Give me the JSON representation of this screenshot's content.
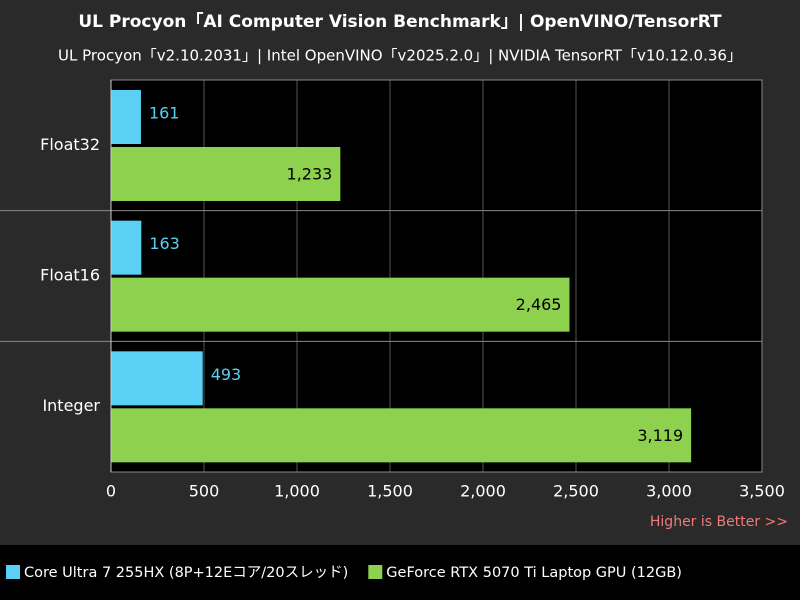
{
  "chart_data": {
    "type": "hbar",
    "title": "UL Procyon「AI Computer Vision Benchmark」| OpenVINO/TensorRT",
    "subtitle": "UL Procyon「v2.10.2031」| Intel OpenVINO「v2025.2.0」| NVIDIA TensorRT「v10.12.0.36」",
    "annotation": "Higher is Better >>",
    "categories": [
      "Float32",
      "Float16",
      "Integer"
    ],
    "series": [
      {
        "name": "Core Ultra 7 255HX (8P+12Eコア/20スレッド)",
        "color": "#5bd0f5",
        "values": [
          161,
          163,
          493
        ]
      },
      {
        "name": "GeForce RTX 5070 Ti Laptop GPU (12GB)",
        "color": "#8dd14f",
        "values": [
          1233,
          2465,
          3119
        ],
        "value_labels": [
          "1,233",
          "2,465",
          "3,119"
        ]
      }
    ],
    "xlim": [
      0,
      3500
    ],
    "xticks": [
      0,
      500,
      {
        "value": 1000,
        "label": "1,000"
      },
      {
        "value": 1500,
        "label": "1,500"
      },
      {
        "value": 2000,
        "label": "2,000"
      },
      {
        "value": 2500,
        "label": "2,500"
      },
      {
        "value": 3000,
        "label": "3,000"
      },
      {
        "value": 3500,
        "label": "3,500"
      }
    ],
    "grid": true
  }
}
